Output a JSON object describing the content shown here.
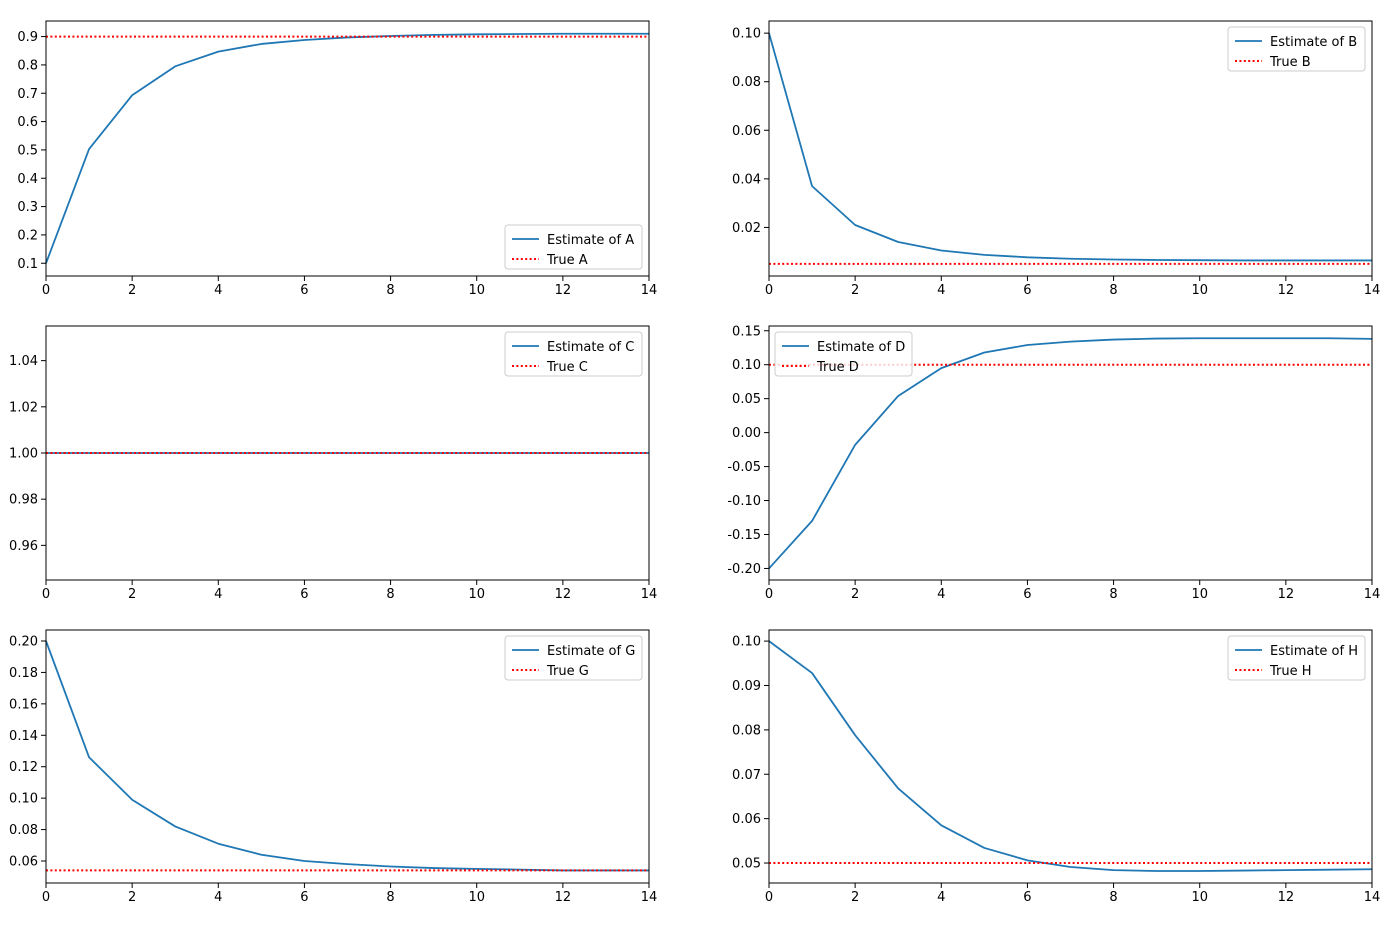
{
  "chart_data": [
    {
      "id": "A",
      "type": "line",
      "xlim": [
        0,
        14
      ],
      "ylim": [
        0.055,
        0.955
      ],
      "xticks": [
        0,
        2,
        4,
        6,
        8,
        10,
        12,
        14
      ],
      "yticks": [
        "0.1",
        "0.2",
        "0.3",
        "0.4",
        "0.5",
        "0.6",
        "0.7",
        "0.8",
        "0.9"
      ],
      "legend_loc": "lower-right",
      "series": [
        {
          "name": "Estimate of A",
          "style": "solid",
          "color": "#1f77b4",
          "x": [
            0,
            1,
            2,
            3,
            4,
            5,
            6,
            7,
            8,
            9,
            10,
            11,
            12,
            13,
            14
          ],
          "y": [
            0.1,
            0.503,
            0.693,
            0.795,
            0.847,
            0.874,
            0.888,
            0.897,
            0.902,
            0.906,
            0.908,
            0.909,
            0.91,
            0.91,
            0.91
          ]
        },
        {
          "name": "True A",
          "style": "dotted",
          "color": "#ff0000",
          "x": [
            0,
            14
          ],
          "y": [
            0.9,
            0.9
          ]
        }
      ]
    },
    {
      "id": "B",
      "type": "line",
      "xlim": [
        0,
        14
      ],
      "ylim": [
        0.0,
        0.105
      ],
      "xticks": [
        0,
        2,
        4,
        6,
        8,
        10,
        12,
        14
      ],
      "yticks": [
        "0.02",
        "0.04",
        "0.06",
        "0.08",
        "0.10"
      ],
      "legend_loc": "upper-right",
      "series": [
        {
          "name": "Estimate of B",
          "style": "solid",
          "color": "#1f77b4",
          "x": [
            0,
            1,
            2,
            3,
            4,
            5,
            6,
            7,
            8,
            9,
            10,
            11,
            12,
            13,
            14
          ],
          "y": [
            0.1,
            0.037,
            0.021,
            0.014,
            0.0105,
            0.0087,
            0.0077,
            0.0071,
            0.0068,
            0.0066,
            0.0065,
            0.0064,
            0.0064,
            0.0064,
            0.0064
          ]
        },
        {
          "name": "True B",
          "style": "dotted",
          "color": "#ff0000",
          "x": [
            0,
            14
          ],
          "y": [
            0.005,
            0.005
          ]
        }
      ]
    },
    {
      "id": "C",
      "type": "line",
      "xlim": [
        0,
        14
      ],
      "ylim": [
        0.945,
        1.055
      ],
      "xticks": [
        0,
        2,
        4,
        6,
        8,
        10,
        12,
        14
      ],
      "yticks": [
        "0.96",
        "0.98",
        "1.00",
        "1.02",
        "1.04"
      ],
      "legend_loc": "upper-right",
      "series": [
        {
          "name": "Estimate of C",
          "style": "solid",
          "color": "#1f77b4",
          "x": [
            0,
            1,
            2,
            3,
            4,
            5,
            6,
            7,
            8,
            9,
            10,
            11,
            12,
            13,
            14
          ],
          "y": [
            1,
            1,
            1,
            1,
            1,
            1,
            1,
            1,
            1,
            1,
            1,
            1,
            1,
            1,
            1
          ]
        },
        {
          "name": "True C",
          "style": "dotted",
          "color": "#ff0000",
          "x": [
            0,
            14
          ],
          "y": [
            1,
            1
          ]
        }
      ]
    },
    {
      "id": "D",
      "type": "line",
      "xlim": [
        0,
        14
      ],
      "ylim": [
        -0.217,
        0.157
      ],
      "xticks": [
        0,
        2,
        4,
        6,
        8,
        10,
        12,
        14
      ],
      "yticks": [
        "-0.20",
        "-0.15",
        "-0.10",
        "-0.05",
        "0.00",
        "0.05",
        "0.10",
        "0.15"
      ],
      "legend_loc": "upper-left",
      "series": [
        {
          "name": "Estimate of D",
          "style": "solid",
          "color": "#1f77b4",
          "x": [
            0,
            1,
            2,
            3,
            4,
            5,
            6,
            7,
            8,
            9,
            10,
            11,
            12,
            13,
            14
          ],
          "y": [
            -0.2,
            -0.13,
            -0.018,
            0.054,
            0.095,
            0.118,
            0.129,
            0.134,
            0.137,
            0.1385,
            0.139,
            0.139,
            0.139,
            0.139,
            0.138
          ]
        },
        {
          "name": "True D",
          "style": "dotted",
          "color": "#ff0000",
          "x": [
            0,
            14
          ],
          "y": [
            0.1,
            0.1
          ]
        }
      ]
    },
    {
      "id": "G",
      "type": "line",
      "xlim": [
        0,
        14
      ],
      "ylim": [
        0.046,
        0.207
      ],
      "xticks": [
        0,
        2,
        4,
        6,
        8,
        10,
        12,
        14
      ],
      "yticks": [
        "0.06",
        "0.08",
        "0.10",
        "0.12",
        "0.14",
        "0.16",
        "0.18",
        "0.20"
      ],
      "legend_loc": "upper-right",
      "series": [
        {
          "name": "Estimate of G",
          "style": "solid",
          "color": "#1f77b4",
          "x": [
            0,
            1,
            2,
            3,
            4,
            5,
            6,
            7,
            8,
            9,
            10,
            11,
            12,
            13,
            14
          ],
          "y": [
            0.2,
            0.126,
            0.099,
            0.082,
            0.071,
            0.064,
            0.06,
            0.058,
            0.0565,
            0.0555,
            0.055,
            0.0545,
            0.054,
            0.054,
            0.054
          ]
        },
        {
          "name": "True G",
          "style": "dotted",
          "color": "#ff0000",
          "x": [
            0,
            14
          ],
          "y": [
            0.054,
            0.054
          ]
        }
      ]
    },
    {
      "id": "H",
      "type": "line",
      "xlim": [
        0,
        14
      ],
      "ylim": [
        0.0455,
        0.1025
      ],
      "xticks": [
        0,
        2,
        4,
        6,
        8,
        10,
        12,
        14
      ],
      "yticks": [
        "0.05",
        "0.06",
        "0.07",
        "0.08",
        "0.09",
        "0.10"
      ],
      "legend_loc": "upper-right",
      "series": [
        {
          "name": "Estimate of H",
          "style": "solid",
          "color": "#1f77b4",
          "x": [
            0,
            1,
            2,
            3,
            4,
            5,
            6,
            7,
            8,
            9,
            10,
            11,
            12,
            13,
            14
          ],
          "y": [
            0.1,
            0.0928,
            0.0788,
            0.0668,
            0.0585,
            0.0534,
            0.0506,
            0.0491,
            0.0484,
            0.0482,
            0.0482,
            0.0483,
            0.0484,
            0.0485,
            0.0486
          ]
        },
        {
          "name": "True H",
          "style": "dotted",
          "color": "#ff0000",
          "x": [
            0,
            14
          ],
          "y": [
            0.05,
            0.05
          ]
        }
      ]
    }
  ]
}
